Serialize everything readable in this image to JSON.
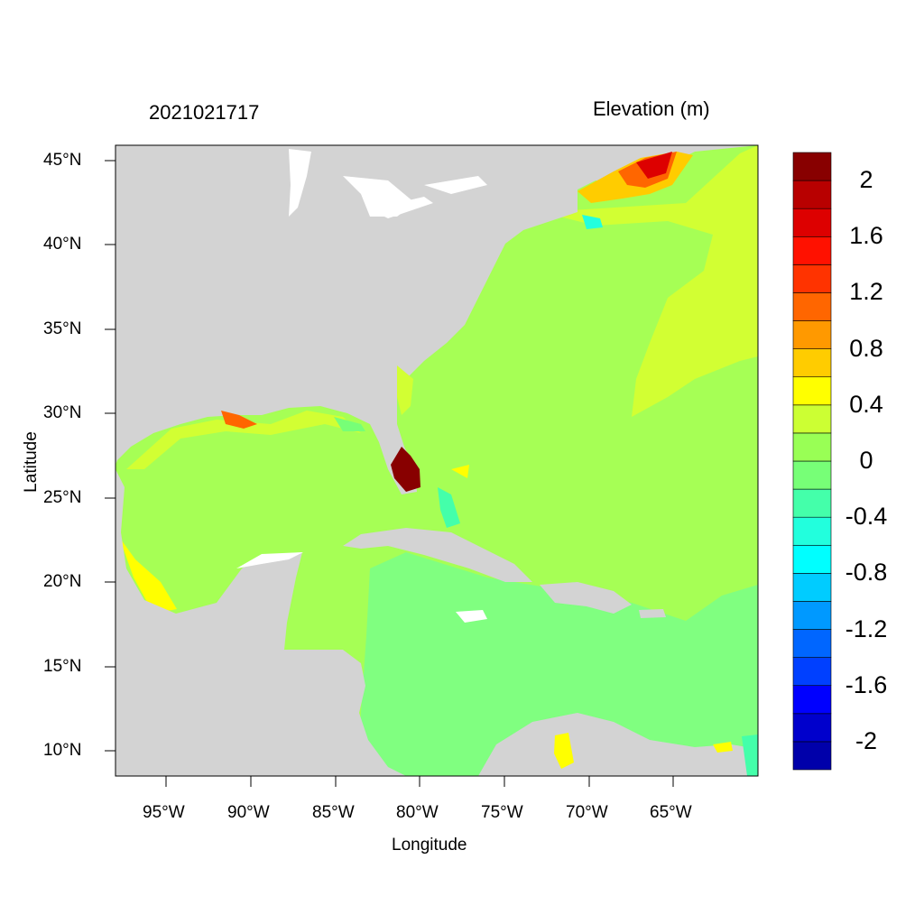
{
  "header": {
    "date_stamp": "2021021717",
    "variable_title": "Elevation (m)"
  },
  "axes": {
    "xlabel": "Longitude",
    "ylabel": "Latitude",
    "x_ticks": [
      "95°W",
      "90°W",
      "85°W",
      "80°W",
      "75°W",
      "70°W",
      "65°W"
    ],
    "y_ticks": [
      "45°N",
      "40°N",
      "35°N",
      "30°N",
      "25°N",
      "20°N",
      "15°N",
      "10°N"
    ]
  },
  "map_extent": {
    "lon_range": [
      -98,
      -60
    ],
    "lat_range": [
      8.5,
      46
    ]
  },
  "colorbar": {
    "colors": [
      "#0000aa",
      "#0000cc",
      "#0000ff",
      "#0040ff",
      "#0066ff",
      "#0099ff",
      "#00ccff",
      "#00ffff",
      "#22ffdd",
      "#44ffaa",
      "#77ff77",
      "#99ff55",
      "#ccff33",
      "#ffff00",
      "#ffcc00",
      "#ff9900",
      "#ff6600",
      "#ff3300",
      "#ff1100",
      "#dd0000",
      "#b80000",
      "#880000"
    ],
    "labels": [
      "2",
      "1.6",
      "1.2",
      "0.8",
      "0.4",
      "0",
      "-0.4",
      "-0.8",
      "-1.2",
      "-1.6",
      "-2"
    ]
  },
  "colors": {
    "land": "#d3d3d3",
    "ocean_base": "#a6ff55",
    "caribbean": "#80ff80",
    "offshore_positive": "#d2ff33"
  }
}
